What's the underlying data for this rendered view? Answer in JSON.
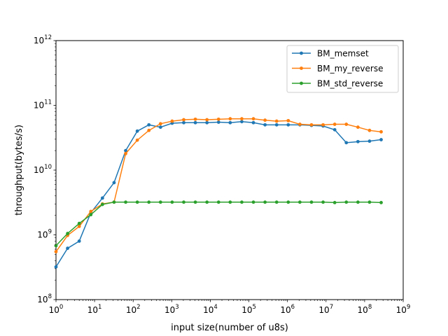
{
  "chart_data": {
    "type": "line",
    "title": "",
    "xlabel": "input size(number of u8s)",
    "ylabel": "throughput(bytes/s)",
    "xscale": "log",
    "yscale": "log",
    "xlim": [
      1,
      1000000000
    ],
    "ylim": [
      100000000,
      1000000000000
    ],
    "x_ticks": [
      {
        "value": 1,
        "mant": "10",
        "exp": "0"
      },
      {
        "value": 10,
        "mant": "10",
        "exp": "1"
      },
      {
        "value": 100,
        "mant": "10",
        "exp": "2"
      },
      {
        "value": 1000,
        "mant": "10",
        "exp": "3"
      },
      {
        "value": 10000,
        "mant": "10",
        "exp": "4"
      },
      {
        "value": 100000,
        "mant": "10",
        "exp": "5"
      },
      {
        "value": 1000000,
        "mant": "10",
        "exp": "6"
      },
      {
        "value": 10000000,
        "mant": "10",
        "exp": "7"
      },
      {
        "value": 100000000,
        "mant": "10",
        "exp": "8"
      },
      {
        "value": 1000000000,
        "mant": "10",
        "exp": "9"
      }
    ],
    "y_ticks": [
      {
        "value": 100000000,
        "mant": "10",
        "exp": "8"
      },
      {
        "value": 1000000000,
        "mant": "10",
        "exp": "9"
      },
      {
        "value": 10000000000,
        "mant": "10",
        "exp": "10"
      },
      {
        "value": 100000000000,
        "mant": "10",
        "exp": "11"
      },
      {
        "value": 1000000000000,
        "mant": "10",
        "exp": "12"
      }
    ],
    "grid": false,
    "legend_position": "top-right",
    "x": [
      1,
      2,
      4,
      8,
      16,
      32,
      64,
      128,
      256,
      512,
      1024,
      2048,
      4096,
      8192,
      16384,
      32768,
      65536,
      131072,
      262144,
      524288,
      1048576,
      2097152,
      4194304,
      8388608,
      16777216,
      33554432,
      67108864,
      134217728,
      268435456
    ],
    "series": [
      {
        "name": "BM_memset",
        "color": "#1f77b4",
        "values": [
          320000000,
          620000000,
          800000000,
          2200000000,
          3700000000,
          6400000000,
          20000000000,
          40000000000,
          50000000000,
          46000000000,
          53000000000,
          54000000000,
          54000000000,
          54000000000,
          55000000000,
          54000000000,
          56000000000,
          54000000000,
          50000000000,
          50000000000,
          50000000000,
          50000000000,
          49000000000,
          48000000000,
          42000000000,
          26500000000,
          27500000000,
          28000000000,
          29500000000
        ]
      },
      {
        "name": "BM_my_reverse",
        "color": "#ff7f0e",
        "values": [
          550000000,
          980000000,
          1350000000,
          2300000000,
          3000000000,
          3200000000,
          18000000000,
          29000000000,
          41000000000,
          52000000000,
          57000000000,
          60000000000,
          61000000000,
          60000000000,
          61000000000,
          62000000000,
          62000000000,
          62000000000,
          59000000000,
          57000000000,
          58000000000,
          51000000000,
          50000000000,
          50000000000,
          51000000000,
          51000000000,
          46000000000,
          41000000000,
          39000000000
        ]
      },
      {
        "name": "BM_std_reverse",
        "color": "#2ca02c",
        "values": [
          680000000,
          1050000000,
          1500000000,
          2050000000,
          2950000000,
          3200000000,
          3200000000,
          3200000000,
          3200000000,
          3200000000,
          3200000000,
          3200000000,
          3200000000,
          3200000000,
          3200000000,
          3200000000,
          3200000000,
          3200000000,
          3200000000,
          3200000000,
          3200000000,
          3200000000,
          3200000000,
          3200000000,
          3150000000,
          3200000000,
          3200000000,
          3200000000,
          3150000000
        ]
      }
    ]
  }
}
